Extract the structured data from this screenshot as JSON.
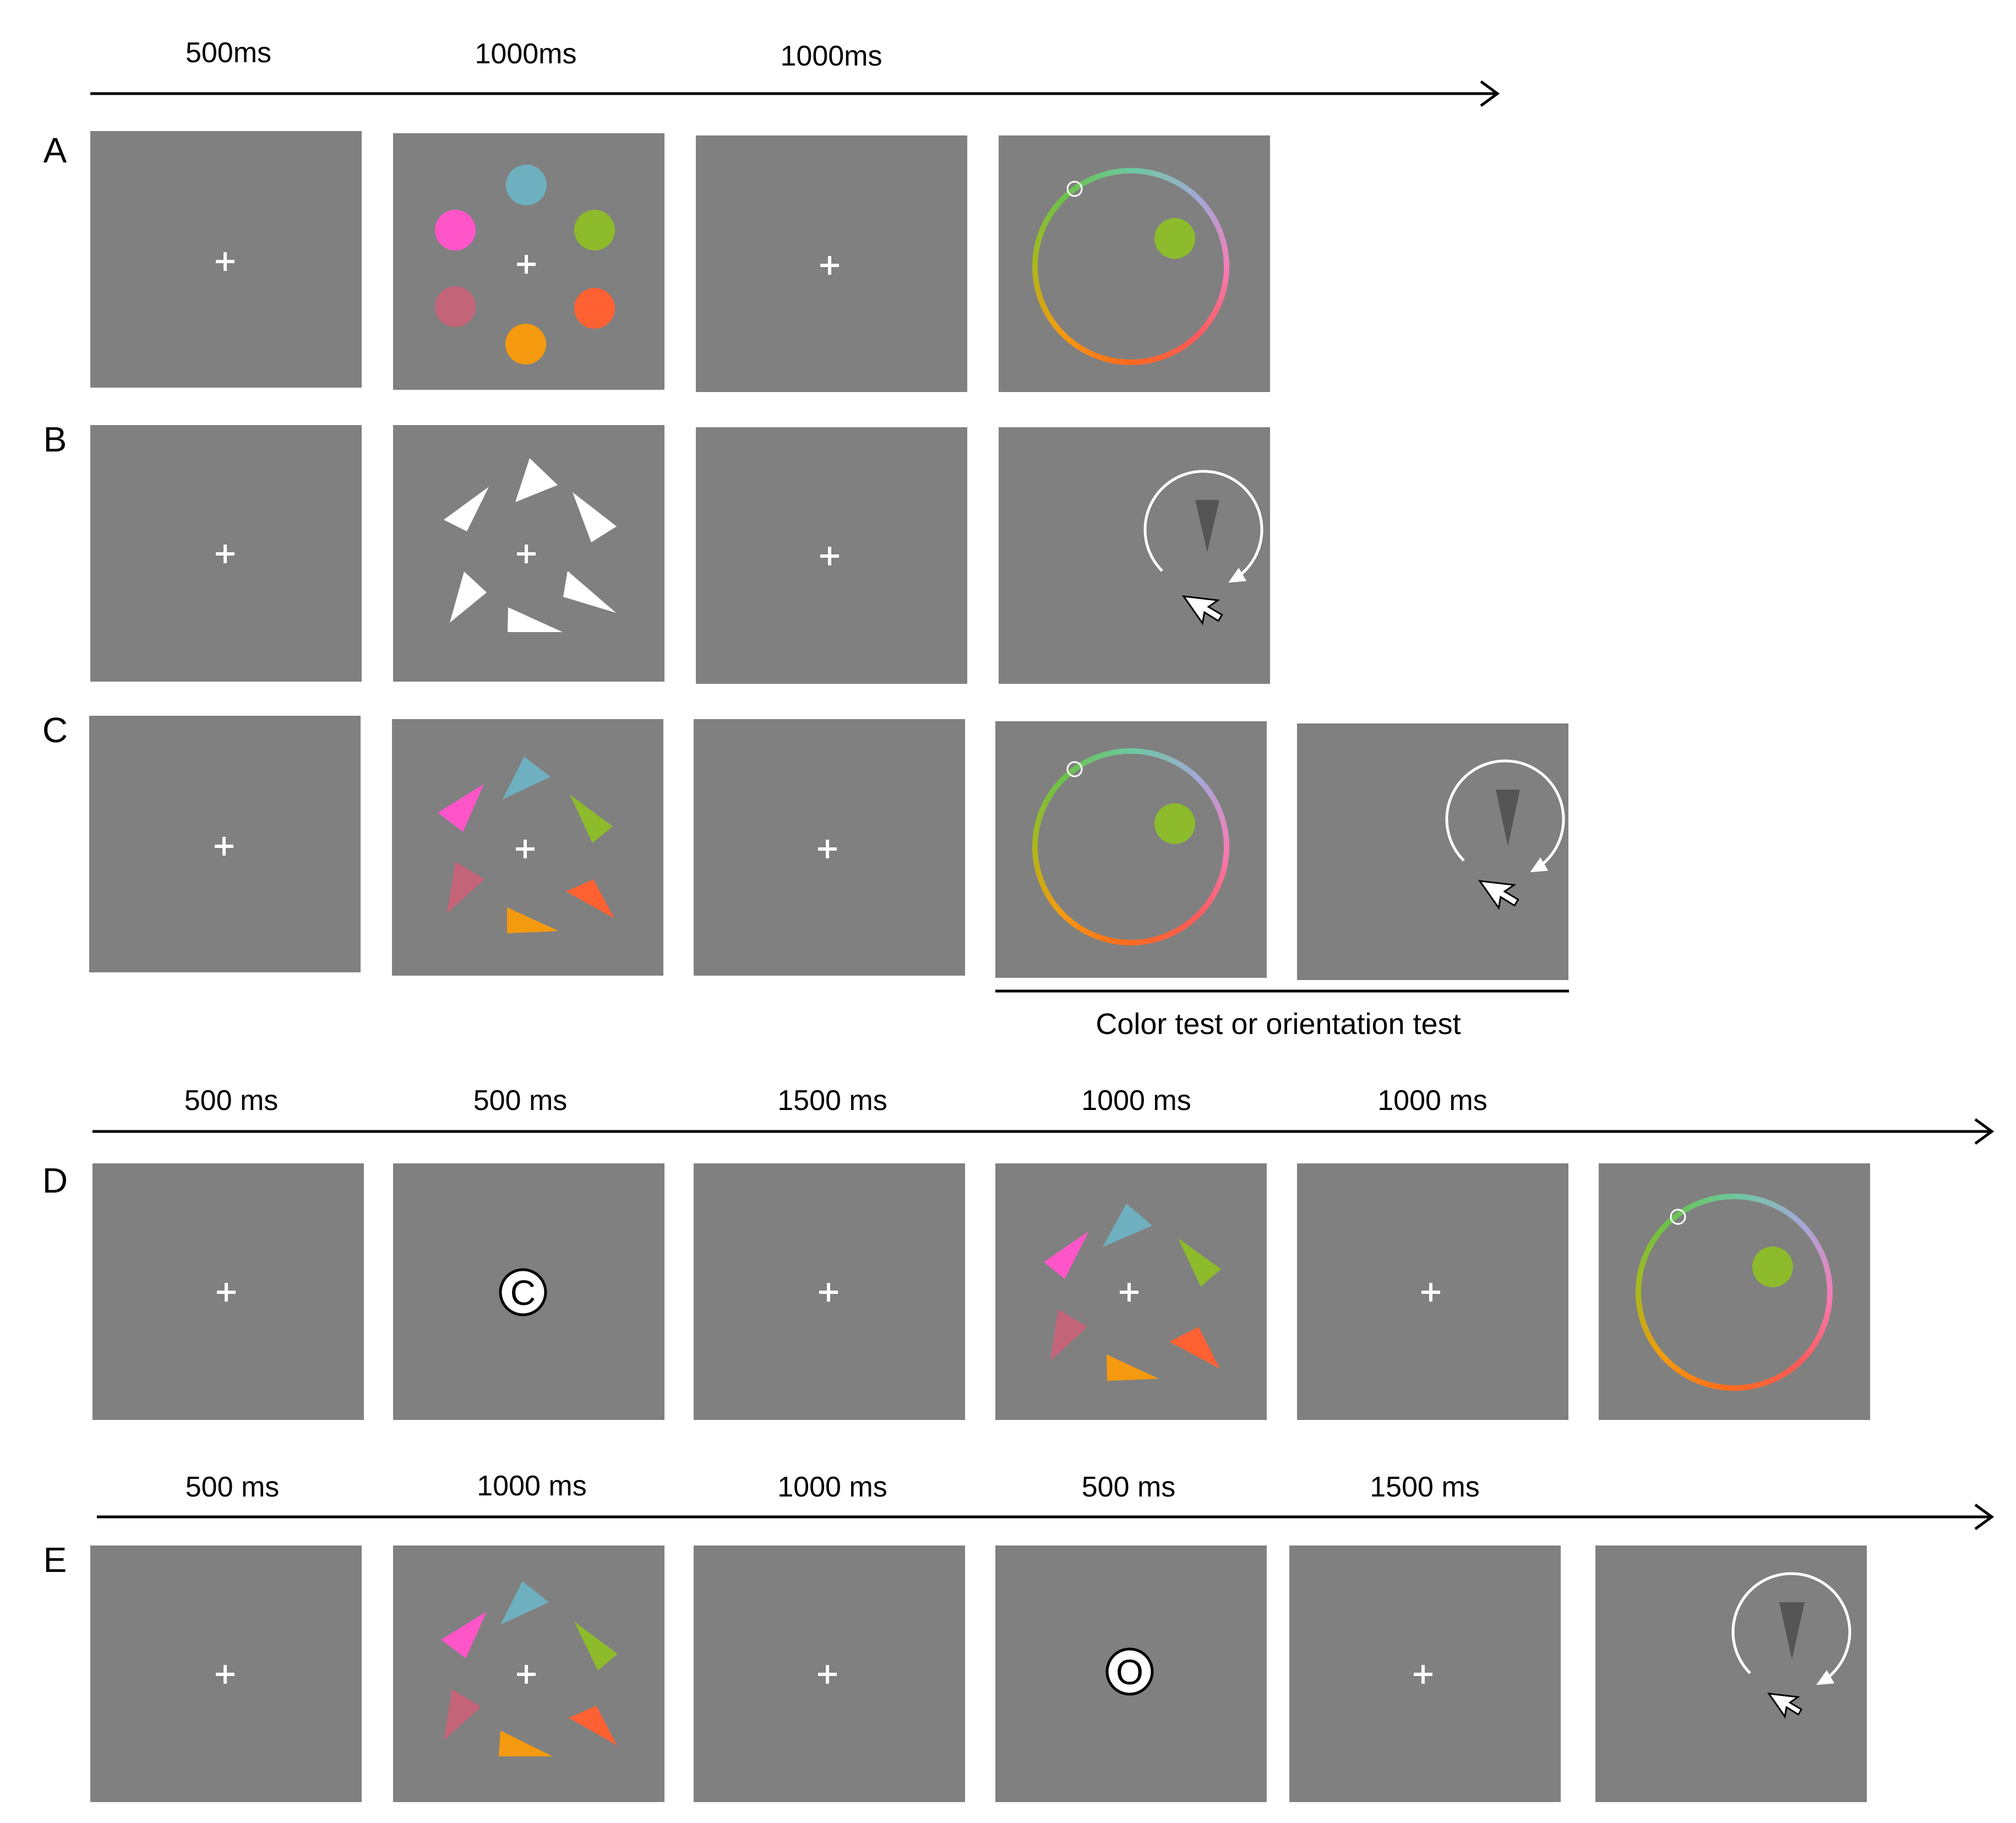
{
  "colors": {
    "screen": "#808080",
    "fixation": "#ffffff",
    "arrow": "#000000",
    "wheel_stops": [
      "#6cc9a0",
      "#a7a7d8",
      "#f77bb5",
      "#ff5a5a",
      "#ff6a1e",
      "#f59a0f",
      "#a8b81a",
      "#6cc24a",
      "#6cc9a0"
    ],
    "probe": "#8dbb2c",
    "pink": "#ff55c8",
    "blue": "#6fb0c0",
    "green": "#8dbb2c",
    "rose": "#c46478",
    "orange_red": "#ff6133",
    "orange": "#f59a0f",
    "test_triangle": "#555555"
  },
  "timeline_top": {
    "durations": [
      "500ms",
      "1000ms",
      "1000ms"
    ]
  },
  "rows": [
    {
      "label": "A"
    },
    {
      "label": "B"
    },
    {
      "label": "C"
    }
  ],
  "test_caption": "Color test or orientation test",
  "timeline_d": {
    "durations": [
      "500 ms",
      "500 ms",
      "1500 ms",
      "1000 ms",
      "1000 ms"
    ]
  },
  "row_d": {
    "label": "D",
    "cue_letter": "C"
  },
  "timeline_e": {
    "durations": [
      "500 ms",
      "1000 ms",
      "1000 ms",
      "500 ms",
      "1500 ms"
    ]
  },
  "row_e": {
    "label": "E",
    "cue_letter": "O"
  },
  "icons": [
    "fixation-cross-icon",
    "color-wheel-icon",
    "rotation-arrow-icon",
    "mouse-cursor-icon",
    "circle-cue-icon"
  ]
}
